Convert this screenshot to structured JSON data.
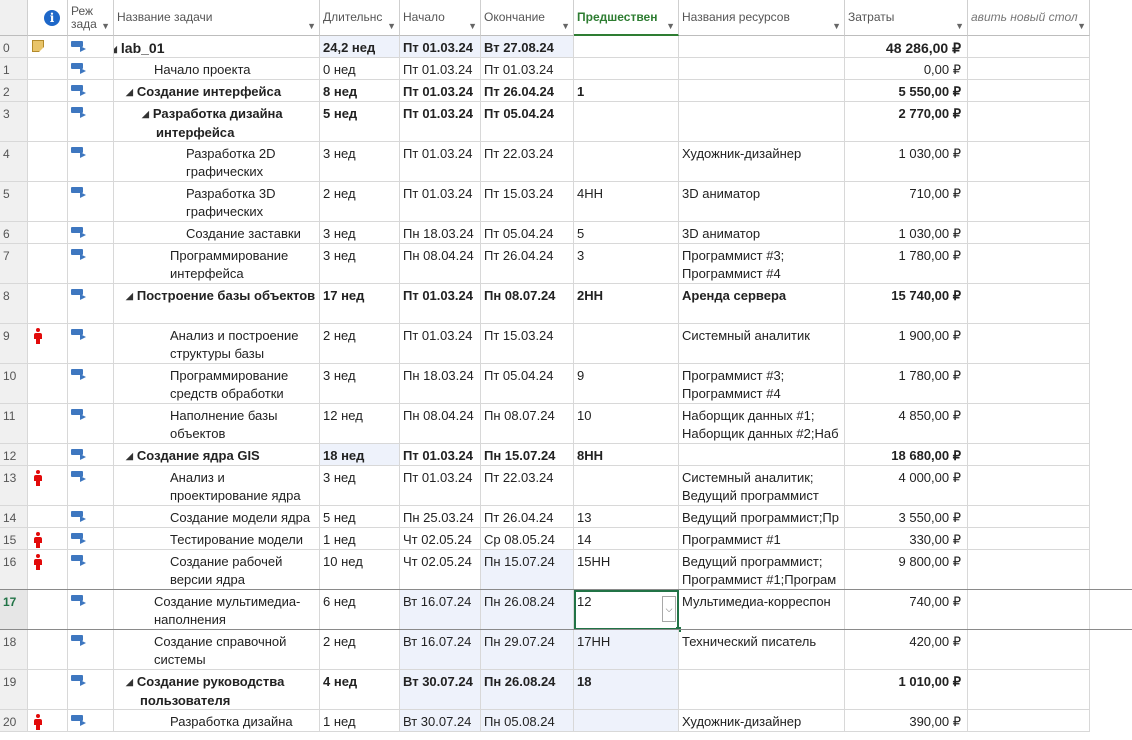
{
  "columns": {
    "info": "i",
    "mode": "Реж\nзада",
    "name": "Название задачи",
    "duration": "Длительнс",
    "start": "Начало",
    "finish": "Окончание",
    "pred": "Предшествен",
    "resources": "Названия ресурсов",
    "cost": "Затраты",
    "add": "авить новый стол"
  },
  "rows": [
    {
      "id": "0",
      "ind": "note",
      "level": 0,
      "summary": true,
      "name": "lab_01",
      "dur": "24,2 нед",
      "start": "Пт 01.03.24",
      "finish": "Вт 27.08.24",
      "pred": "",
      "res": "",
      "cost": "48 286,00 ₽",
      "h": 22,
      "big": true
    },
    {
      "id": "1",
      "ind": "",
      "level": 1,
      "summary": false,
      "name": "Начало проекта",
      "dur": "0 нед",
      "start": "Пт 01.03.24",
      "finish": "Пт 01.03.24",
      "pred": "",
      "res": "",
      "cost": "0,00 ₽",
      "h": 22
    },
    {
      "id": "2",
      "ind": "",
      "level": 1,
      "summary": true,
      "name": "Создание интерфейса",
      "dur": "8 нед",
      "start": "Пт 01.03.24",
      "finish": "Пт 26.04.24",
      "pred": "1",
      "res": "",
      "cost": "5 550,00 ₽",
      "h": 22
    },
    {
      "id": "3",
      "ind": "",
      "level": 2,
      "summary": true,
      "name": "Разработка дизайна интерфейса",
      "dur": "5 нед",
      "start": "Пт 01.03.24",
      "finish": "Пт 05.04.24",
      "pred": "",
      "res": "",
      "cost": "2 770,00 ₽",
      "h": 40
    },
    {
      "id": "4",
      "ind": "",
      "level": 3,
      "summary": false,
      "name": "Разработка 2D графических",
      "dur": "3 нед",
      "start": "Пт 01.03.24",
      "finish": "Пт 22.03.24",
      "pred": "",
      "res": "Художник-дизайнер",
      "cost": "1 030,00 ₽",
      "h": 40
    },
    {
      "id": "5",
      "ind": "",
      "level": 3,
      "summary": false,
      "name": "Разработка 3D графических",
      "dur": "2 нед",
      "start": "Пт 01.03.24",
      "finish": "Пт 15.03.24",
      "pred": "4НН",
      "res": "3D аниматор",
      "cost": "710,00 ₽",
      "h": 40
    },
    {
      "id": "6",
      "ind": "",
      "level": 3,
      "summary": false,
      "name": "Создание заставки",
      "dur": "3 нед",
      "start": "Пн 18.03.24",
      "finish": "Пт 05.04.24",
      "pred": "5",
      "res": "3D аниматор",
      "cost": "1 030,00 ₽",
      "h": 22
    },
    {
      "id": "7",
      "ind": "",
      "level": 2,
      "summary": false,
      "name": "Программирование интерфейса",
      "dur": "3 нед",
      "start": "Пн 08.04.24",
      "finish": "Пт 26.04.24",
      "pred": "3",
      "res": "Программист #3; Программист #4",
      "cost": "1 780,00 ₽",
      "h": 40
    },
    {
      "id": "8",
      "ind": "",
      "level": 1,
      "summary": true,
      "name": "Построение базы объектов",
      "dur": "17 нед",
      "start": "Пт 01.03.24",
      "finish": "Пн 08.07.24",
      "pred": "2НН",
      "res": "Аренда сервера",
      "cost": "15 740,00 ₽",
      "h": 40
    },
    {
      "id": "9",
      "ind": "person",
      "level": 2,
      "summary": false,
      "name": "Анализ и построение структуры базы",
      "dur": "2 нед",
      "start": "Пт 01.03.24",
      "finish": "Пт 15.03.24",
      "pred": "",
      "res": "Системный аналитик",
      "cost": "1 900,00 ₽",
      "h": 40
    },
    {
      "id": "10",
      "ind": "",
      "level": 2,
      "summary": false,
      "name": "Программирование средств обработки базы",
      "dur": "3 нед",
      "start": "Пн 18.03.24",
      "finish": "Пт 05.04.24",
      "pred": "9",
      "res": "Программист #3; Программист #4",
      "cost": "1 780,00 ₽",
      "h": 40
    },
    {
      "id": "11",
      "ind": "",
      "level": 2,
      "summary": false,
      "name": "Наполнение базы объектов",
      "dur": "12 нед",
      "start": "Пн 08.04.24",
      "finish": "Пн 08.07.24",
      "pred": "10",
      "res": "Наборщик данных #1; Наборщик данных #2;Наб",
      "cost": "4 850,00 ₽",
      "h": 40
    },
    {
      "id": "12",
      "ind": "",
      "level": 1,
      "summary": true,
      "name": "Создание ядра GIS",
      "dur": "18 нед",
      "start": "Пт 01.03.24",
      "finish": "Пн 15.07.24",
      "pred": "8НН",
      "res": "",
      "cost": "18 680,00 ₽",
      "h": 22,
      "durhl": true
    },
    {
      "id": "13",
      "ind": "person",
      "level": 2,
      "summary": false,
      "name": "Анализ и проектирование ядра",
      "dur": "3 нед",
      "start": "Пт 01.03.24",
      "finish": "Пт 22.03.24",
      "pred": "",
      "res": "Системный аналитик; Ведущий программист",
      "cost": "4 000,00 ₽",
      "h": 40
    },
    {
      "id": "14",
      "ind": "",
      "level": 2,
      "summary": false,
      "name": "Создание модели ядра",
      "dur": "5 нед",
      "start": "Пн 25.03.24",
      "finish": "Пт 26.04.24",
      "pred": "13",
      "res": "Ведущий программист;Пр",
      "cost": "3 550,00 ₽",
      "h": 22
    },
    {
      "id": "15",
      "ind": "person",
      "level": 2,
      "summary": false,
      "name": "Тестирование модели ядра",
      "dur": "1 нед",
      "start": "Чт 02.05.24",
      "finish": "Ср 08.05.24",
      "pred": "14",
      "res": "Программист #1",
      "cost": "330,00 ₽",
      "h": 22
    },
    {
      "id": "16",
      "ind": "person",
      "level": 2,
      "summary": false,
      "name": "Создание рабочей версии ядра",
      "dur": "10 нед",
      "start": "Чт 02.05.24",
      "finish": "Пн 15.07.24",
      "pred": "15НН",
      "res": "Ведущий программист; Программист #1;Програм",
      "cost": "9 800,00 ₽",
      "h": 40
    },
    {
      "id": "17",
      "ind": "",
      "level": 1,
      "summary": false,
      "name": "Создание мультимедиа-наполнения",
      "dur": "6 нед",
      "start": "Вт 16.07.24",
      "finish": "Пн 26.08.24",
      "pred": "12",
      "res": "Мультимедиа-корреспон",
      "cost": "740,00 ₽",
      "h": 40,
      "selected": true
    },
    {
      "id": "18",
      "ind": "",
      "level": 1,
      "summary": false,
      "name": "Создание справочной системы",
      "dur": "2 нед",
      "start": "Вт 16.07.24",
      "finish": "Пн 29.07.24",
      "pred": "17НН",
      "res": "Технический писатель",
      "cost": "420,00 ₽",
      "h": 40
    },
    {
      "id": "19",
      "ind": "",
      "level": 1,
      "summary": true,
      "name": "Создание руководства пользователя",
      "dur": "4 нед",
      "start": "Вт 30.07.24",
      "finish": "Пн 26.08.24",
      "pred": "18",
      "res": "",
      "cost": "1 010,00 ₽",
      "h": 40
    },
    {
      "id": "20",
      "ind": "person",
      "level": 2,
      "summary": false,
      "name": "Разработка дизайна",
      "dur": "1 нед",
      "start": "Вт 30.07.24",
      "finish": "Пн 05.08.24",
      "pred": "",
      "res": "Художник-дизайнер",
      "cost": "390,00 ₽",
      "h": 22
    }
  ]
}
